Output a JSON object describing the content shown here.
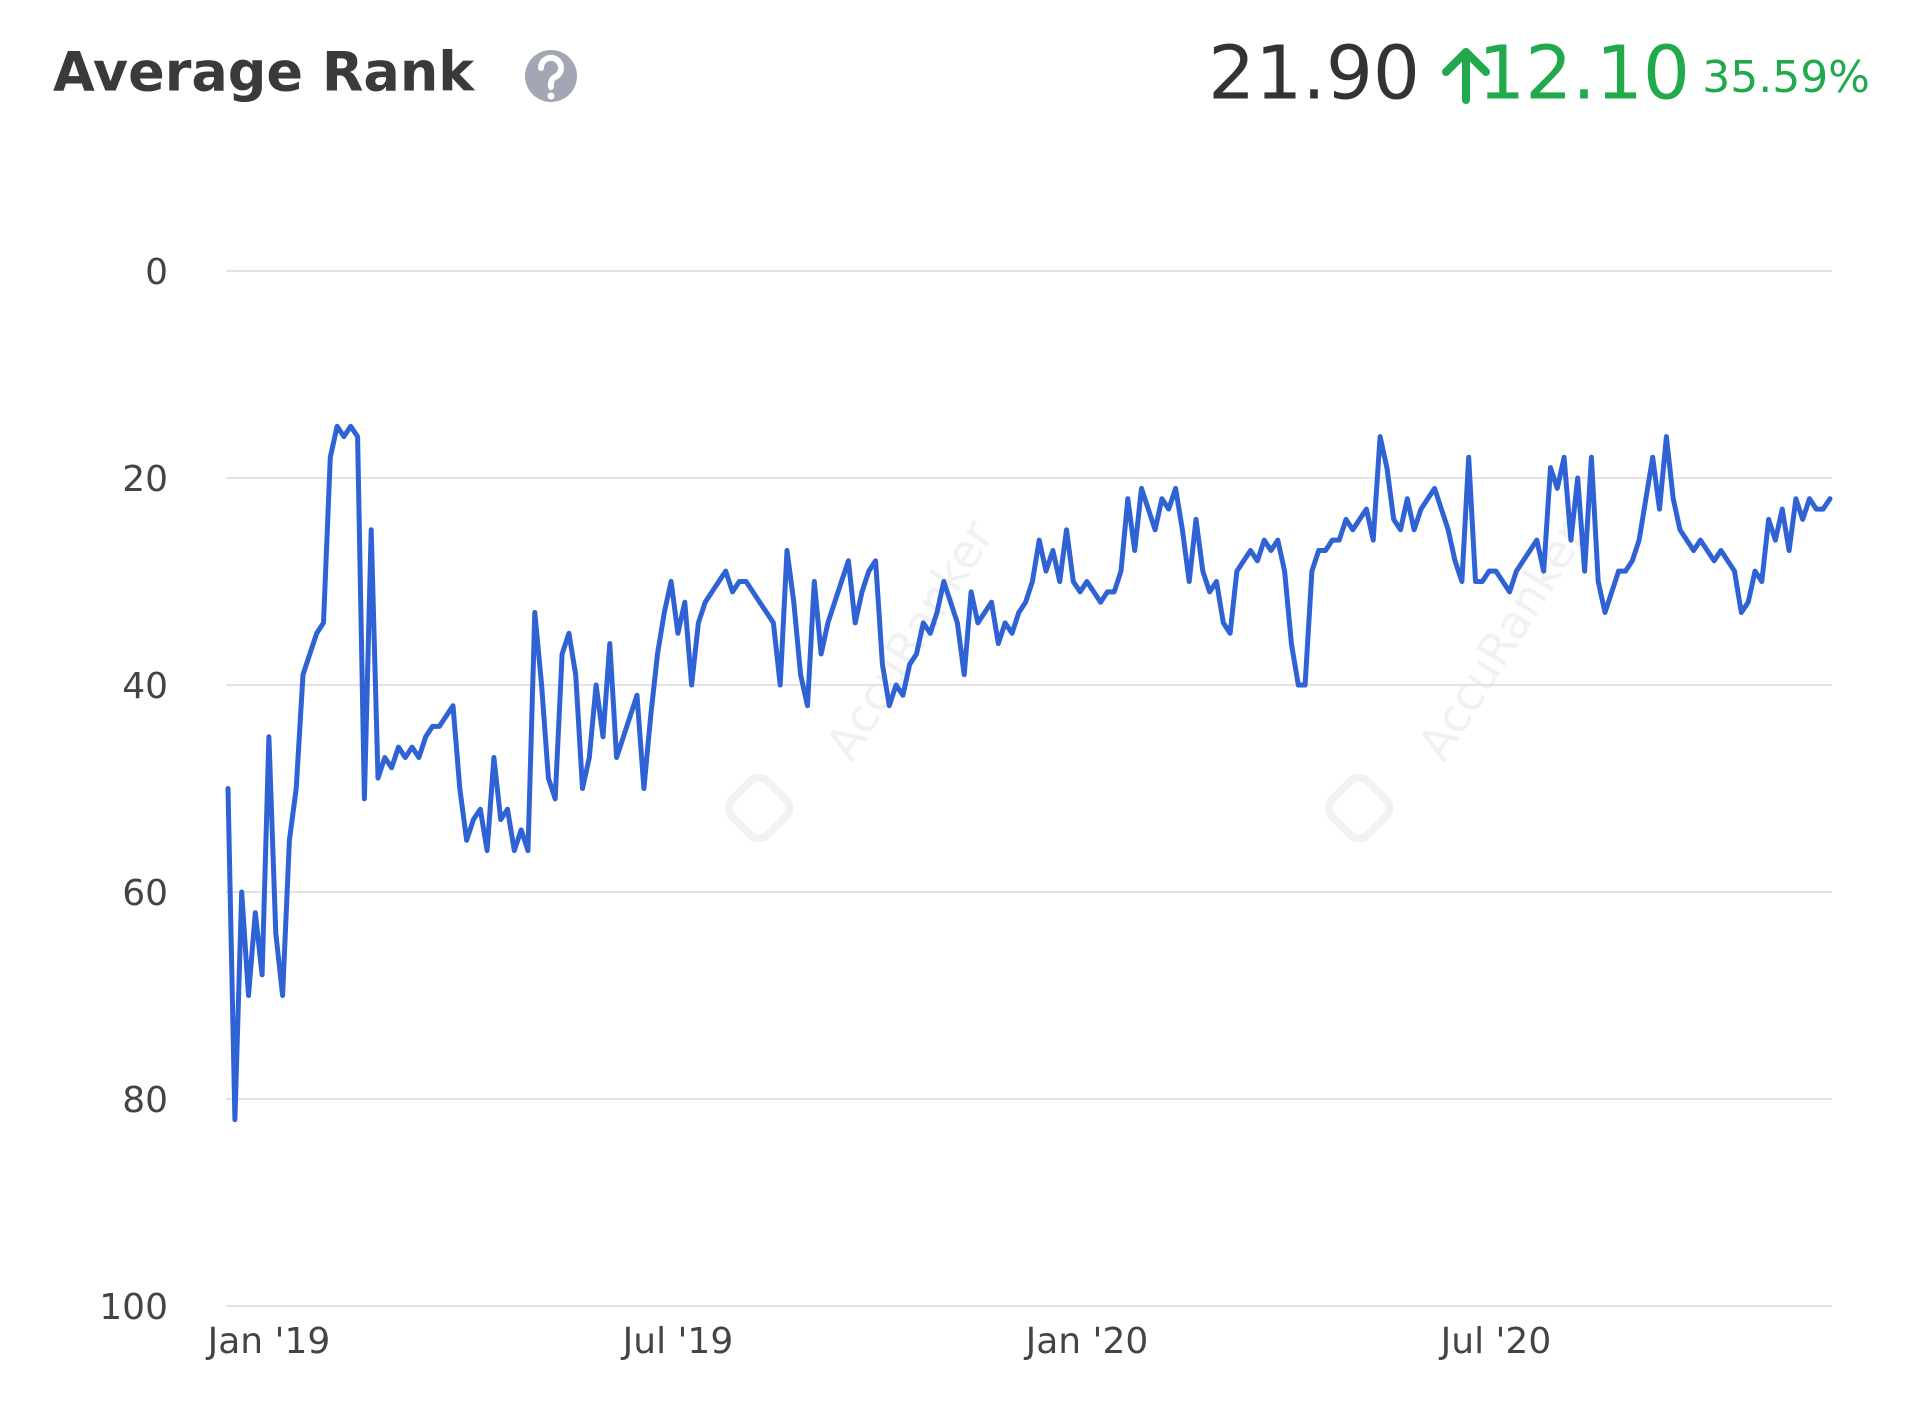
{
  "chart_data": {
    "type": "line",
    "title": "Average Rank",
    "summary": {
      "value": "21.90",
      "change": "12.10",
      "change_percent": "35.59%"
    },
    "watermark": "AccuRanker",
    "y_reversed": true,
    "grid": true,
    "xlim": [
      -0.63,
      22.93
    ],
    "ylim": [
      0,
      100
    ],
    "yticks": [
      0,
      20,
      40,
      60,
      80,
      100
    ],
    "xticks": [
      {
        "value": 0,
        "label": "Jan '19"
      },
      {
        "value": 6,
        "label": "Jul '19"
      },
      {
        "value": 12,
        "label": "Jan '20"
      },
      {
        "value": 18,
        "label": "Jul '20"
      }
    ],
    "x": [
      -0.6,
      -0.5,
      -0.4,
      -0.3,
      -0.2,
      -0.1,
      0,
      0.1,
      0.2,
      0.3,
      0.4,
      0.5,
      0.6,
      0.7,
      0.8,
      0.9,
      1,
      1.1,
      1.2,
      1.3,
      1.4,
      1.5,
      1.6,
      1.7,
      1.8,
      1.9,
      2,
      2.1,
      2.2,
      2.3,
      2.4,
      2.5,
      2.6,
      2.7,
      2.8,
      2.9,
      3,
      3.1,
      3.2,
      3.3,
      3.4,
      3.5,
      3.6,
      3.7,
      3.8,
      3.9,
      4,
      4.1,
      4.2,
      4.3,
      4.4,
      4.5,
      4.6,
      4.7,
      4.8,
      4.9,
      5,
      5.1,
      5.2,
      5.3,
      5.4,
      5.5,
      5.6,
      5.7,
      5.8,
      5.9,
      6,
      6.1,
      6.2,
      6.3,
      6.4,
      6.5,
      6.6,
      6.7,
      6.8,
      6.9,
      7,
      7.1,
      7.2,
      7.3,
      7.4,
      7.5,
      7.6,
      7.7,
      7.8,
      7.9,
      8,
      8.1,
      8.2,
      8.3,
      8.4,
      8.5,
      8.6,
      8.7,
      8.8,
      8.9,
      9,
      9.1,
      9.2,
      9.3,
      9.4,
      9.5,
      9.6,
      9.7,
      9.8,
      9.9,
      10,
      10.1,
      10.2,
      10.3,
      10.4,
      10.5,
      10.6,
      10.7,
      10.8,
      10.9,
      11,
      11.1,
      11.2,
      11.3,
      11.4,
      11.5,
      11.6,
      11.7,
      11.8,
      11.9,
      12,
      12.1,
      12.2,
      12.3,
      12.4,
      12.5,
      12.6,
      12.7,
      12.8,
      12.9,
      13,
      13.1,
      13.2,
      13.3,
      13.4,
      13.5,
      13.6,
      13.7,
      13.8,
      13.9,
      14,
      14.1,
      14.2,
      14.3,
      14.4,
      14.5,
      14.6,
      14.7,
      14.8,
      14.9,
      15,
      15.1,
      15.2,
      15.3,
      15.4,
      15.5,
      15.6,
      15.7,
      15.8,
      15.9,
      16,
      16.1,
      16.2,
      16.3,
      16.4,
      16.5,
      16.6,
      16.7,
      16.8,
      16.9,
      17,
      17.1,
      17.2,
      17.3,
      17.4,
      17.5,
      17.6,
      17.7,
      17.8,
      17.9,
      18,
      18.1,
      18.2,
      18.3,
      18.4,
      18.5,
      18.6,
      18.7,
      18.8,
      18.9,
      19,
      19.1,
      19.2,
      19.3,
      19.4,
      19.5,
      19.6,
      19.7,
      19.8,
      19.9,
      20,
      20.1,
      20.2,
      20.3,
      20.4,
      20.5,
      20.6,
      20.7,
      20.8,
      20.9,
      21,
      21.1,
      21.2,
      21.3,
      21.4,
      21.5,
      21.6,
      21.7,
      21.8,
      21.9,
      22,
      22.1,
      22.2,
      22.3,
      22.4,
      22.5,
      22.6,
      22.7,
      22.8,
      22.9
    ],
    "series": [
      {
        "name": "Average Rank",
        "color": "#2f62d5",
        "values": [
          50,
          82,
          60,
          70,
          62,
          68,
          45,
          64,
          70,
          55,
          50,
          39,
          37,
          35,
          34,
          18,
          15,
          16,
          15,
          16,
          51,
          25,
          49,
          47,
          48,
          46,
          47,
          46,
          47,
          45,
          44,
          44,
          43,
          42,
          50,
          55,
          53,
          52,
          56,
          47,
          53,
          52,
          56,
          54,
          56,
          33,
          40,
          49,
          51,
          37,
          35,
          39,
          50,
          47,
          40,
          45,
          36,
          47,
          45,
          43,
          41,
          50,
          43,
          37,
          33,
          30,
          35,
          32,
          40,
          34,
          32,
          31,
          30,
          29,
          31,
          30,
          30,
          31,
          32,
          33,
          34,
          40,
          27,
          32,
          39,
          42,
          30,
          37,
          34,
          32,
          30,
          28,
          34,
          31,
          29,
          28,
          38,
          42,
          40,
          41,
          38,
          37,
          34,
          35,
          33,
          30,
          32,
          34,
          39,
          31,
          34,
          33,
          32,
          36,
          34,
          35,
          33,
          32,
          30,
          26,
          29,
          27,
          30,
          25,
          30,
          31,
          30,
          31,
          32,
          31,
          31,
          29,
          22,
          27,
          21,
          23,
          25,
          22,
          23,
          21,
          25,
          30,
          24,
          29,
          31,
          30,
          34,
          35,
          29,
          28,
          27,
          28,
          26,
          27,
          26,
          29,
          36,
          40,
          40,
          29,
          27,
          27,
          26,
          26,
          24,
          25,
          24,
          23,
          26,
          16,
          19,
          24,
          25,
          22,
          25,
          23,
          22,
          21,
          23,
          25,
          28,
          30,
          18,
          30,
          30,
          29,
          29,
          30,
          31,
          29,
          28,
          27,
          26,
          29,
          19,
          21,
          18,
          26,
          20,
          29,
          18,
          30,
          33,
          31,
          29,
          29,
          28,
          26,
          22,
          18,
          23,
          16,
          22,
          25,
          26,
          27,
          26,
          27,
          28,
          27,
          28,
          29,
          33,
          32,
          29,
          30,
          24,
          26,
          23,
          27,
          22,
          24,
          22,
          23,
          23,
          22
        ]
      }
    ]
  }
}
